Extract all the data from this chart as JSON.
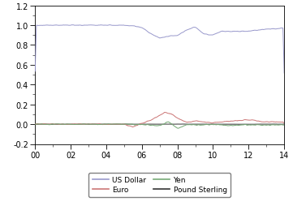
{
  "xlim": [
    0,
    14
  ],
  "ylim": [
    -0.2,
    1.2
  ],
  "yticks": [
    -0.2,
    0.0,
    0.2,
    0.4,
    0.6,
    0.8,
    1.0,
    1.2
  ],
  "xticks": [
    0,
    2,
    4,
    6,
    8,
    10,
    12,
    14
  ],
  "xticklabels": [
    "00",
    "02",
    "04",
    "06",
    "08",
    "10",
    "12",
    "14"
  ],
  "colors": {
    "us_dollar": "#9999cc",
    "euro": "#cc7777",
    "yen": "#77aa77",
    "pound": "#333333"
  },
  "linewidth": 0.7
}
